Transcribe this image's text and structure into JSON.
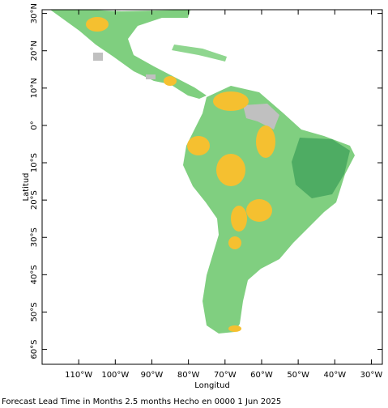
{
  "map": {
    "xlabel": "Longitud",
    "ylabel": "Latitud",
    "footer": "Forecast Lead Time in Months 2.5 months Hecho en 0000 1 Jun 2025",
    "xlim": [
      -120,
      -27
    ],
    "ylim": [
      -64,
      31
    ],
    "xticks": [
      {
        "value": -110,
        "label": "110°W"
      },
      {
        "value": -100,
        "label": "100°W"
      },
      {
        "value": -90,
        "label": "90°W"
      },
      {
        "value": -80,
        "label": "80°W"
      },
      {
        "value": -70,
        "label": "70°W"
      },
      {
        "value": -60,
        "label": "60°W"
      },
      {
        "value": -50,
        "label": "50°W"
      },
      {
        "value": -40,
        "label": "40°W"
      },
      {
        "value": -30,
        "label": "30°W"
      }
    ],
    "yticks": [
      {
        "value": 30,
        "label": "30°N"
      },
      {
        "value": 20,
        "label": "20°N"
      },
      {
        "value": 10,
        "label": "10°N"
      },
      {
        "value": 0,
        "label": "0°"
      },
      {
        "value": -10,
        "label": "10°S"
      },
      {
        "value": -20,
        "label": "20°S"
      },
      {
        "value": -30,
        "label": "30°S"
      },
      {
        "value": -40,
        "label": "40°S"
      },
      {
        "value": -50,
        "label": "50°S"
      },
      {
        "value": -60,
        "label": "60°S"
      }
    ]
  }
}
